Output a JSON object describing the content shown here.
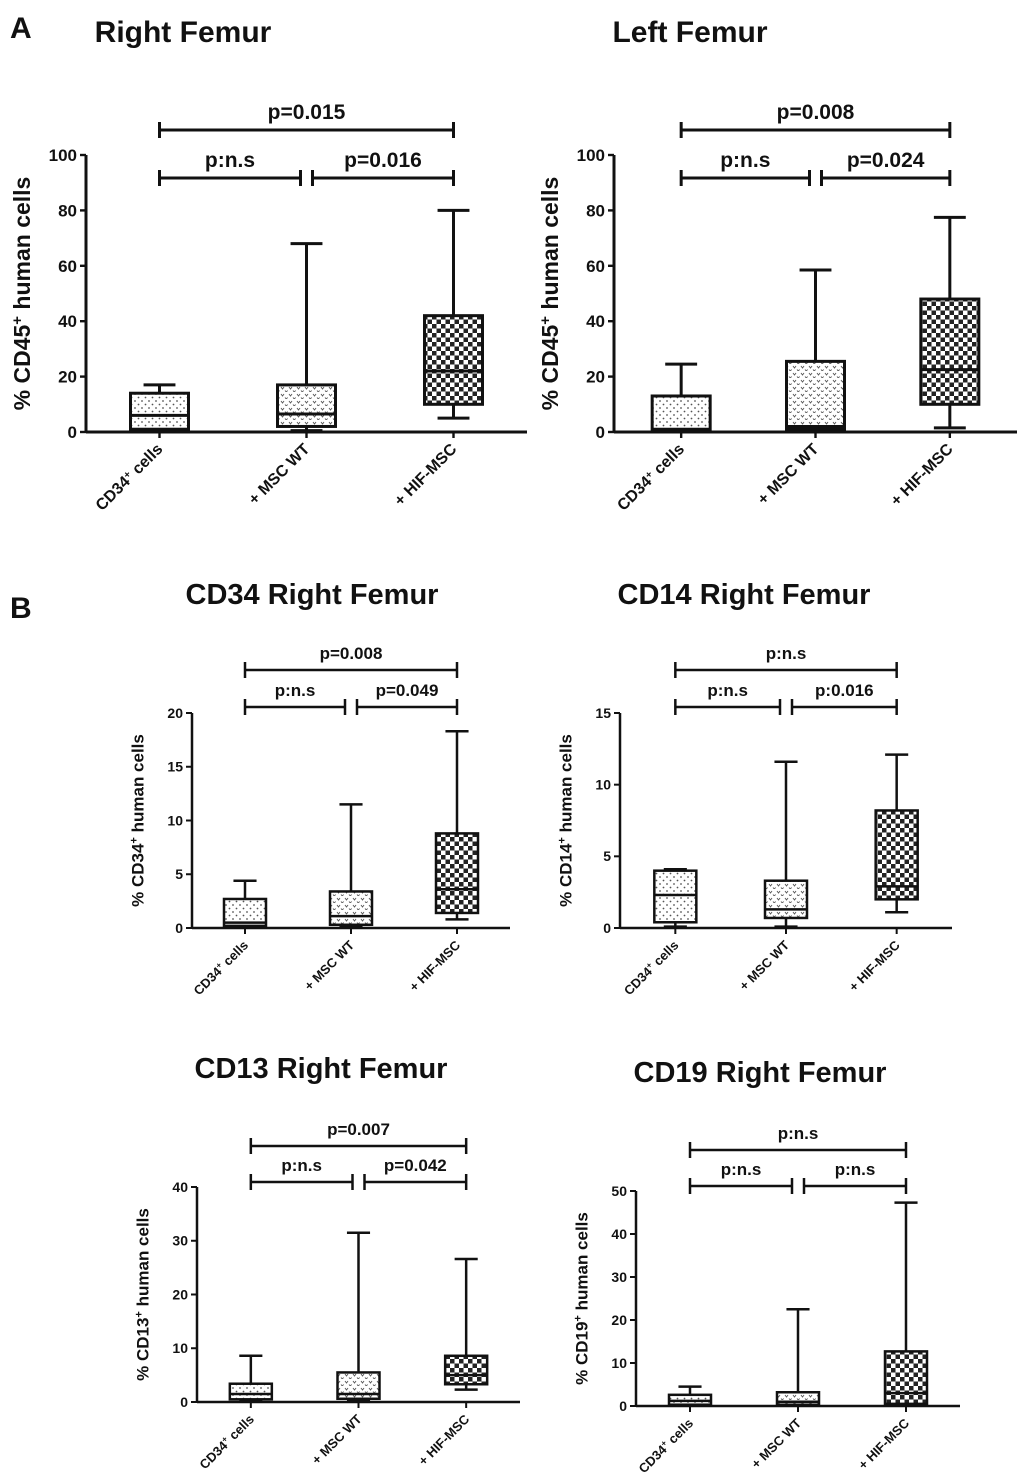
{
  "panels": [
    {
      "label": "A"
    },
    {
      "label": "B"
    }
  ],
  "chart_data": [
    {
      "type": "boxplot",
      "title": "Right Femur",
      "ylabel_prefix": "% CD45",
      "ylabel_sup": "+",
      "ylabel_suffix": " human cells",
      "ylim": [
        0,
        100
      ],
      "yticks": [
        0,
        20,
        40,
        60,
        80,
        100
      ],
      "categories": [
        {
          "main": "CD34",
          "sup": "+",
          "tail": " cells",
          "pattern": "dots"
        },
        {
          "main": "+ MSC WT",
          "sup": "",
          "tail": "",
          "pattern": "hearts"
        },
        {
          "main": "+ HIF-MSC",
          "sup": "",
          "tail": "",
          "pattern": "checker"
        }
      ],
      "boxes": [
        {
          "min": 0.5,
          "q1": 1,
          "median": 6,
          "q3": 14,
          "max": 17
        },
        {
          "min": 0.5,
          "q1": 2,
          "median": 6.5,
          "q3": 17,
          "max": 68
        },
        {
          "min": 5,
          "q1": 10,
          "median": 22,
          "q3": 42,
          "max": 80
        }
      ],
      "comparisons": [
        {
          "from": 0,
          "to": 2,
          "text": "p=0.015",
          "level": 2
        },
        {
          "from": 0,
          "to": 1,
          "text": "p:n.s",
          "level": 1
        },
        {
          "from": 1,
          "to": 2,
          "text": "p=0.016",
          "level": 1
        }
      ]
    },
    {
      "type": "boxplot",
      "title": "Left Femur",
      "ylabel_prefix": "% CD45",
      "ylabel_sup": "+",
      "ylabel_suffix": " human cells",
      "ylim": [
        0,
        100
      ],
      "yticks": [
        0,
        20,
        40,
        60,
        80,
        100
      ],
      "categories": [
        {
          "main": "CD34",
          "sup": "+",
          "tail": " cells",
          "pattern": "dots"
        },
        {
          "main": "+ MSC WT",
          "sup": "",
          "tail": "",
          "pattern": "hearts"
        },
        {
          "main": "+ HIF-MSC",
          "sup": "",
          "tail": "",
          "pattern": "checker"
        }
      ],
      "boxes": [
        {
          "min": 0.5,
          "q1": 0.5,
          "median": 1,
          "q3": 13,
          "max": 24.5
        },
        {
          "min": 0.5,
          "q1": 1,
          "median": 2,
          "q3": 25.5,
          "max": 58.5
        },
        {
          "min": 1.5,
          "q1": 10,
          "median": 22.5,
          "q3": 48,
          "max": 77.5
        }
      ],
      "comparisons": [
        {
          "from": 0,
          "to": 2,
          "text": "p=0.008",
          "level": 2
        },
        {
          "from": 0,
          "to": 1,
          "text": "p:n.s",
          "level": 1
        },
        {
          "from": 1,
          "to": 2,
          "text": "p=0.024",
          "level": 1
        }
      ]
    },
    {
      "type": "boxplot",
      "title": "CD34 Right Femur",
      "ylabel_prefix": "% CD34",
      "ylabel_sup": "+",
      "ylabel_suffix": " human cells",
      "ylim": [
        0,
        20
      ],
      "yticks": [
        0,
        5,
        10,
        15,
        20
      ],
      "categories": [
        {
          "main": "CD34",
          "sup": "+",
          "tail": " cells",
          "pattern": "dots"
        },
        {
          "main": "+ MSC WT",
          "sup": "",
          "tail": "",
          "pattern": "hearts"
        },
        {
          "main": "+ HIF-MSC",
          "sup": "",
          "tail": "",
          "pattern": "checker"
        }
      ],
      "boxes": [
        {
          "min": 0.1,
          "q1": 0.2,
          "median": 0.5,
          "q3": 2.7,
          "max": 4.4
        },
        {
          "min": 0.1,
          "q1": 0.3,
          "median": 1.1,
          "q3": 3.4,
          "max": 11.5
        },
        {
          "min": 0.8,
          "q1": 1.4,
          "median": 3.6,
          "q3": 8.8,
          "max": 18.3
        }
      ],
      "comparisons": [
        {
          "from": 0,
          "to": 2,
          "text": "p=0.008",
          "level": 2
        },
        {
          "from": 0,
          "to": 1,
          "text": "p:n.s",
          "level": 1
        },
        {
          "from": 1,
          "to": 2,
          "text": "p=0.049",
          "level": 1
        }
      ]
    },
    {
      "type": "boxplot",
      "title": "CD14 Right Femur",
      "ylabel_prefix": "% CD14",
      "ylabel_sup": "+",
      "ylabel_suffix": " human cells",
      "ylim": [
        0,
        15
      ],
      "yticks": [
        0,
        5,
        10,
        15
      ],
      "categories": [
        {
          "main": "CD34",
          "sup": "+",
          "tail": " cells",
          "pattern": "dots"
        },
        {
          "main": "+ MSC WT",
          "sup": "",
          "tail": "",
          "pattern": "hearts"
        },
        {
          "main": "+ HIF-MSC",
          "sup": "",
          "tail": "",
          "pattern": "checker"
        }
      ],
      "boxes": [
        {
          "min": 0.1,
          "q1": 0.4,
          "median": 2.3,
          "q3": 4.0,
          "max": 4.1
        },
        {
          "min": 0.1,
          "q1": 0.7,
          "median": 1.3,
          "q3": 3.3,
          "max": 11.6
        },
        {
          "min": 1.1,
          "q1": 2.0,
          "median": 2.9,
          "q3": 8.2,
          "max": 12.1
        }
      ],
      "comparisons": [
        {
          "from": 0,
          "to": 2,
          "text": "p:n.s",
          "level": 2
        },
        {
          "from": 0,
          "to": 1,
          "text": "p:n.s",
          "level": 1
        },
        {
          "from": 1,
          "to": 2,
          "text": "p:0.016",
          "level": 1
        }
      ]
    },
    {
      "type": "boxplot",
      "title": "CD13 Right Femur",
      "ylabel_prefix": "% CD13",
      "ylabel_sup": "+",
      "ylabel_suffix": " human cells",
      "ylim": [
        0,
        40
      ],
      "yticks": [
        0,
        10,
        20,
        30,
        40
      ],
      "categories": [
        {
          "main": "CD34",
          "sup": "+",
          "tail": " cells",
          "pattern": "dots"
        },
        {
          "main": "+ MSC WT",
          "sup": "",
          "tail": "",
          "pattern": "hearts"
        },
        {
          "main": "+ HIF-MSC",
          "sup": "",
          "tail": "",
          "pattern": "checker"
        }
      ],
      "boxes": [
        {
          "min": 0.2,
          "q1": 0.5,
          "median": 1.5,
          "q3": 3.4,
          "max": 8.6
        },
        {
          "min": 0.2,
          "q1": 0.6,
          "median": 1.5,
          "q3": 5.5,
          "max": 31.5
        },
        {
          "min": 2.3,
          "q1": 3.3,
          "median": 5.0,
          "q3": 8.6,
          "max": 26.6
        }
      ],
      "comparisons": [
        {
          "from": 0,
          "to": 2,
          "text": "p=0.007",
          "level": 2
        },
        {
          "from": 0,
          "to": 1,
          "text": "p:n.s",
          "level": 1
        },
        {
          "from": 1,
          "to": 2,
          "text": "p=0.042",
          "level": 1
        }
      ]
    },
    {
      "type": "boxplot",
      "title": "CD19 Right Femur",
      "ylabel_prefix": "% CD19",
      "ylabel_sup": "+",
      "ylabel_suffix": " human cells",
      "ylim": [
        0,
        50
      ],
      "yticks": [
        0,
        10,
        20,
        30,
        40,
        50
      ],
      "categories": [
        {
          "main": "CD34",
          "sup": "+",
          "tail": " cells",
          "pattern": "dots"
        },
        {
          "main": "+ MSC WT",
          "sup": "",
          "tail": "",
          "pattern": "hearts"
        },
        {
          "main": "+ HIF-MSC",
          "sup": "",
          "tail": "",
          "pattern": "checker"
        }
      ],
      "boxes": [
        {
          "min": 0.1,
          "q1": 0.3,
          "median": 1.2,
          "q3": 2.6,
          "max": 4.5
        },
        {
          "min": 0.1,
          "q1": 0.3,
          "median": 1.0,
          "q3": 3.2,
          "max": 22.5
        },
        {
          "min": 0.2,
          "q1": 0.5,
          "median": 3.0,
          "q3": 12.7,
          "max": 47.3
        }
      ],
      "comparisons": [
        {
          "from": 0,
          "to": 2,
          "text": "p:n.s",
          "level": 2
        },
        {
          "from": 0,
          "to": 1,
          "text": "p:n.s",
          "level": 1
        },
        {
          "from": 1,
          "to": 2,
          "text": "p:n.s",
          "level": 1
        }
      ]
    }
  ]
}
